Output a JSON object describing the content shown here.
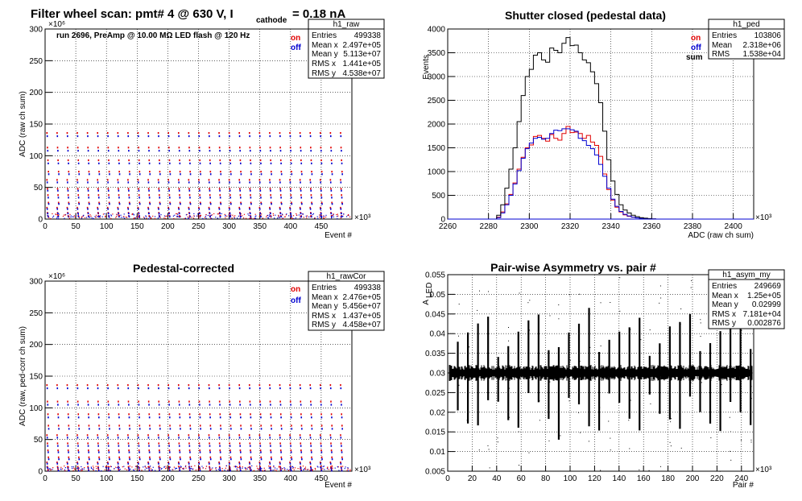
{
  "canvas": {
    "title_main": "Filter wheel scan: pmt#   4 @    630 V, I",
    "title_sub": "cathode",
    "title_tail": "= 0.18 nA"
  },
  "colors": {
    "on": "#e00000",
    "off": "#0000d0",
    "sum": "#000000",
    "grid": "#000000"
  },
  "panels": {
    "raw": {
      "title": "",
      "stats_name": "h1_raw",
      "stats": [
        [
          "Entries",
          "499338"
        ],
        [
          "Mean x",
          "2.497e+05"
        ],
        [
          "Mean y",
          "5.113e+07"
        ],
        [
          "RMS x",
          "1.441e+05"
        ],
        [
          "RMS y",
          "4.538e+07"
        ]
      ],
      "note": "run 2696, PreAmp @ 10.00 MΩ LED flash @  120 Hz",
      "legend": [
        "on",
        "off"
      ],
      "xlabel": "Event #",
      "ylabel": "ADC (raw ch sum)",
      "xexp": "×10³",
      "yexp": "×10⁶"
    },
    "ped": {
      "title": "Shutter closed (pedestal data)",
      "stats_name": "h1_ped",
      "stats": [
        [
          "Entries",
          "103806"
        ],
        [
          "Mean",
          "2.318e+06"
        ],
        [
          "RMS",
          "1.538e+04"
        ]
      ],
      "legend": [
        "on",
        "off",
        "sum"
      ],
      "xlabel": "ADC (raw ch sum)",
      "ylabel": "Events",
      "xexp": "×10³"
    },
    "cor": {
      "title": "Pedestal-corrected",
      "stats_name": "h1_rawCor",
      "stats": [
        [
          "Entries",
          "499338"
        ],
        [
          "Mean x",
          "2.476e+05"
        ],
        [
          "Mean y",
          "5.456e+07"
        ],
        [
          "RMS x",
          "1.437e+05"
        ],
        [
          "RMS y",
          "4.458e+07"
        ]
      ],
      "legend": [
        "on",
        "off"
      ],
      "xlabel": "Event #",
      "ylabel": "ADC (raw, ped-corr ch sum)",
      "xexp": "×10³",
      "yexp": "×10⁶"
    },
    "asym": {
      "title": "Pair-wise Asymmetry vs. pair #",
      "stats_name": "h1_asym_my",
      "stats": [
        [
          "Entries",
          "249669"
        ],
        [
          "Mean x",
          "1.25e+05"
        ],
        [
          "Mean y",
          "0.02999"
        ],
        [
          "RMS x",
          "7.181e+04"
        ],
        [
          "RMS y",
          "0.002876"
        ]
      ],
      "xlabel": "Pair #",
      "ylabel": "A",
      "ylabel_sub": "LED",
      "xexp": "×10³"
    }
  },
  "chart_data": [
    {
      "id": "raw",
      "type": "scatter",
      "x_ticks": [
        "0",
        "50",
        "100",
        "150",
        "200",
        "250",
        "300",
        "350",
        "400",
        "450"
      ],
      "y_ticks": [
        "0",
        "50",
        "100",
        "150",
        "200",
        "250",
        "300"
      ],
      "xlim": [
        0,
        500
      ],
      "ylim": [
        0,
        300
      ],
      "grid": true,
      "cycle_events_k": 16.5,
      "on_levels": [
        136,
        113,
        93,
        75,
        62,
        48,
        38,
        26,
        18,
        10,
        5
      ],
      "off_levels": [
        131,
        108,
        88,
        71,
        58,
        45,
        34,
        24,
        16,
        9,
        4
      ]
    },
    {
      "id": "ped",
      "type": "line",
      "x_ticks": [
        "2260",
        "2280",
        "2300",
        "2320",
        "2340",
        "2360",
        "2380",
        "2400"
      ],
      "y_ticks": [
        "0",
        "500",
        "1000",
        "1500",
        "2000",
        "2500",
        "3000",
        "3500",
        "4000"
      ],
      "xlim": [
        2260,
        2410
      ],
      "ylim": [
        0,
        4000
      ],
      "grid": true,
      "x": [
        2283,
        2285,
        2287,
        2289,
        2291,
        2293,
        2295,
        2297,
        2299,
        2301,
        2303,
        2305,
        2307,
        2309,
        2311,
        2313,
        2315,
        2317,
        2319,
        2321,
        2323,
        2325,
        2327,
        2329,
        2331,
        2333,
        2335,
        2337,
        2339,
        2341,
        2343,
        2345,
        2347,
        2349,
        2351,
        2353,
        2355,
        2357,
        2359,
        2361,
        2363
      ],
      "series": [
        {
          "name": "on",
          "values": [
            0,
            40,
            150,
            320,
            520,
            760,
            1050,
            1300,
            1500,
            1560,
            1740,
            1760,
            1700,
            1640,
            1780,
            1700,
            1660,
            1800,
            1950,
            1820,
            1830,
            1800,
            1700,
            1760,
            1620,
            1550,
            1320,
            950,
            620,
            400,
            250,
            150,
            90,
            60,
            40,
            25,
            15,
            10,
            5,
            3,
            0
          ]
        },
        {
          "name": "off",
          "values": [
            0,
            30,
            130,
            300,
            500,
            740,
            1020,
            1280,
            1480,
            1600,
            1700,
            1720,
            1680,
            1700,
            1800,
            1870,
            1860,
            1900,
            1900,
            1880,
            1850,
            1700,
            1650,
            1550,
            1480,
            1350,
            1150,
            900,
            650,
            420,
            270,
            160,
            100,
            65,
            40,
            25,
            15,
            10,
            5,
            3,
            0
          ]
        },
        {
          "name": "sum",
          "values": [
            0,
            80,
            300,
            650,
            1050,
            1500,
            2050,
            2600,
            3000,
            3150,
            3450,
            3500,
            3350,
            3300,
            3600,
            3550,
            3500,
            3700,
            3820,
            3650,
            3660,
            3500,
            3350,
            3290,
            3100,
            2850,
            2450,
            1850,
            1250,
            800,
            520,
            300,
            190,
            130,
            80,
            50,
            30,
            20,
            10,
            5,
            0
          ]
        }
      ]
    },
    {
      "id": "cor",
      "type": "scatter",
      "x_ticks": [
        "0",
        "50",
        "100",
        "150",
        "200",
        "250",
        "300",
        "350",
        "400",
        "450"
      ],
      "y_ticks": [
        "0",
        "50",
        "100",
        "150",
        "200",
        "250",
        "300"
      ],
      "xlim": [
        0,
        500
      ],
      "ylim": [
        0,
        300
      ],
      "grid": true,
      "cycle_events_k": 16.5,
      "on_levels": [
        136,
        110,
        90,
        72,
        57,
        44,
        33,
        22,
        14,
        7,
        2
      ],
      "off_levels": [
        131,
        105,
        85,
        67,
        53,
        40,
        30,
        19,
        12,
        5,
        1
      ]
    },
    {
      "id": "asym",
      "type": "scatter",
      "x_ticks": [
        "0",
        "20",
        "40",
        "60",
        "80",
        "100",
        "120",
        "140",
        "160",
        "180",
        "200",
        "220",
        "240"
      ],
      "y_ticks": [
        "0.005",
        "0.01",
        "0.015",
        "0.02",
        "0.025",
        "0.03",
        "0.035",
        "0.04",
        "0.045",
        "0.05",
        "0.055"
      ],
      "xlim": [
        0,
        250
      ],
      "ylim": [
        0.005,
        0.055
      ],
      "grid": true,
      "baseline": 0.03,
      "cycle_pairs_k": 8.25
    }
  ]
}
